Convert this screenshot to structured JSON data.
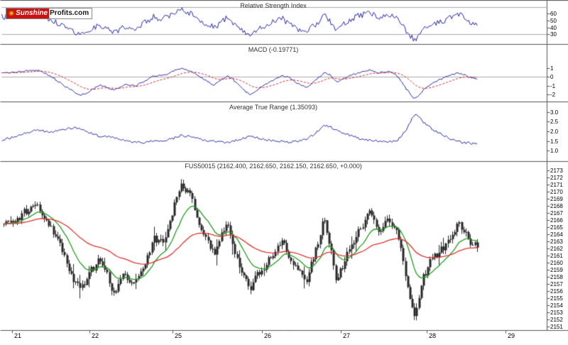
{
  "logo": {
    "part1": "Sunshine",
    "part2": "Profits.com"
  },
  "icons": {
    "sun": "☀"
  },
  "x_axis": {
    "labels": [
      {
        "label": "21",
        "t": 0.019
      },
      {
        "label": "22",
        "t": 0.162
      },
      {
        "label": "25",
        "t": 0.314
      },
      {
        "label": "26",
        "t": 0.478
      },
      {
        "label": "27",
        "t": 0.623
      },
      {
        "label": "28",
        "t": 0.78
      },
      {
        "label": "29",
        "t": 0.925
      }
    ]
  },
  "chart_data": [
    {
      "id": "rsi",
      "type": "line",
      "title": "Relative Strength Index",
      "ylim": [
        18,
        76
      ],
      "y_ticks": [
        60,
        50,
        40,
        30
      ],
      "guides": [
        70,
        30
      ],
      "series": [
        {
          "name": "RSI",
          "color": "#2323aa",
          "style": "solid",
          "noise": 4.5,
          "anchors": [
            [
              0,
              56
            ],
            [
              0.03,
              60
            ],
            [
              0.065,
              64
            ],
            [
              0.09,
              52
            ],
            [
              0.115,
              42
            ],
            [
              0.143,
              30
            ],
            [
              0.162,
              38
            ],
            [
              0.18,
              45
            ],
            [
              0.205,
              33
            ],
            [
              0.225,
              42
            ],
            [
              0.245,
              40
            ],
            [
              0.26,
              47
            ],
            [
              0.279,
              56
            ],
            [
              0.295,
              52
            ],
            [
              0.31,
              60
            ],
            [
              0.329,
              68
            ],
            [
              0.345,
              62
            ],
            [
              0.36,
              54
            ],
            [
              0.375,
              46
            ],
            [
              0.39,
              40
            ],
            [
              0.405,
              50
            ],
            [
              0.413,
              55
            ],
            [
              0.425,
              47
            ],
            [
              0.44,
              36
            ],
            [
              0.455,
              30
            ],
            [
              0.474,
              40
            ],
            [
              0.49,
              47
            ],
            [
              0.513,
              55
            ],
            [
              0.527,
              46
            ],
            [
              0.539,
              40
            ],
            [
              0.558,
              33
            ],
            [
              0.575,
              45
            ],
            [
              0.591,
              58
            ],
            [
              0.603,
              48
            ],
            [
              0.613,
              36
            ],
            [
              0.625,
              44
            ],
            [
              0.64,
              52
            ],
            [
              0.656,
              58
            ],
            [
              0.675,
              62
            ],
            [
              0.69,
              55
            ],
            [
              0.708,
              60
            ],
            [
              0.72,
              56
            ],
            [
              0.727,
              50
            ],
            [
              0.74,
              38
            ],
            [
              0.757,
              22
            ],
            [
              0.767,
              32
            ],
            [
              0.773,
              38
            ],
            [
              0.786,
              44
            ],
            [
              0.8,
              48
            ],
            [
              0.815,
              52
            ],
            [
              0.825,
              56
            ],
            [
              0.836,
              60
            ],
            [
              0.845,
              57
            ],
            [
              0.857,
              50
            ],
            [
              0.87,
              45
            ]
          ]
        }
      ]
    },
    {
      "id": "macd",
      "type": "line",
      "title": "MACD (-0.19771)",
      "value": -0.19771,
      "ylim": [
        -2.64,
        3.36
      ],
      "y_ticks": [
        1,
        0,
        -1,
        -2
      ],
      "guides": [
        0
      ],
      "series": [
        {
          "name": "MACD",
          "color": "#2323aa",
          "style": "solid",
          "noise": 0.1,
          "anchors": [
            [
              0,
              0.4
            ],
            [
              0.03,
              0.6
            ],
            [
              0.065,
              0.8
            ],
            [
              0.09,
              0.1
            ],
            [
              0.115,
              -1.0
            ],
            [
              0.143,
              -2.1
            ],
            [
              0.162,
              -1.6
            ],
            [
              0.18,
              -0.9
            ],
            [
              0.205,
              -1.4
            ],
            [
              0.225,
              -0.9
            ],
            [
              0.245,
              -1.0
            ],
            [
              0.26,
              -0.5
            ],
            [
              0.279,
              0.2
            ],
            [
              0.295,
              0.1
            ],
            [
              0.31,
              0.6
            ],
            [
              0.329,
              1.0
            ],
            [
              0.345,
              0.7
            ],
            [
              0.36,
              0.2
            ],
            [
              0.375,
              -0.4
            ],
            [
              0.39,
              -0.9
            ],
            [
              0.405,
              -0.2
            ],
            [
              0.413,
              0.1
            ],
            [
              0.425,
              -0.3
            ],
            [
              0.44,
              -1.3
            ],
            [
              0.455,
              -2.0
            ],
            [
              0.474,
              -1.2
            ],
            [
              0.49,
              -0.6
            ],
            [
              0.513,
              0.2
            ],
            [
              0.527,
              -0.1
            ],
            [
              0.539,
              -0.6
            ],
            [
              0.558,
              -1.2
            ],
            [
              0.575,
              -0.4
            ],
            [
              0.591,
              0.5
            ],
            [
              0.603,
              0.2
            ],
            [
              0.613,
              -0.6
            ],
            [
              0.625,
              -0.3
            ],
            [
              0.64,
              0.2
            ],
            [
              0.656,
              0.5
            ],
            [
              0.675,
              0.8
            ],
            [
              0.69,
              0.5
            ],
            [
              0.708,
              0.6
            ],
            [
              0.72,
              0.4
            ],
            [
              0.727,
              0.0
            ],
            [
              0.74,
              -1.2
            ],
            [
              0.757,
              -2.45
            ],
            [
              0.767,
              -1.9
            ],
            [
              0.773,
              -1.5
            ],
            [
              0.786,
              -0.9
            ],
            [
              0.8,
              -0.4
            ],
            [
              0.815,
              0.0
            ],
            [
              0.825,
              0.3
            ],
            [
              0.836,
              0.45
            ],
            [
              0.845,
              0.3
            ],
            [
              0.857,
              0.0
            ],
            [
              0.87,
              -0.2
            ]
          ]
        },
        {
          "name": "Signal",
          "color": "#cc2222",
          "style": "dashed",
          "derived": "ema_of_first",
          "alpha": 0.08
        }
      ]
    },
    {
      "id": "atr",
      "type": "line",
      "title": "Average True Range (1.35093)",
      "value": 1.35093,
      "ylim": [
        0.52,
        3.48
      ],
      "y_ticks": [
        "3.0",
        "2.5",
        "2.0",
        "1.5",
        "1.0"
      ],
      "guides": [],
      "series": [
        {
          "name": "ATR",
          "color": "#2323aa",
          "style": "solid",
          "noise": 0.06,
          "anchors": [
            [
              0,
              1.55
            ],
            [
              0.03,
              1.8
            ],
            [
              0.065,
              2.1
            ],
            [
              0.09,
              1.95
            ],
            [
              0.115,
              2.15
            ],
            [
              0.143,
              2.2
            ],
            [
              0.162,
              1.95
            ],
            [
              0.18,
              1.75
            ],
            [
              0.205,
              1.7
            ],
            [
              0.225,
              1.55
            ],
            [
              0.245,
              1.45
            ],
            [
              0.26,
              1.4
            ],
            [
              0.279,
              1.55
            ],
            [
              0.295,
              1.5
            ],
            [
              0.31,
              1.6
            ],
            [
              0.329,
              1.8
            ],
            [
              0.345,
              1.75
            ],
            [
              0.36,
              1.65
            ],
            [
              0.375,
              1.55
            ],
            [
              0.39,
              1.5
            ],
            [
              0.405,
              1.45
            ],
            [
              0.425,
              1.5
            ],
            [
              0.44,
              1.65
            ],
            [
              0.455,
              1.75
            ],
            [
              0.474,
              1.65
            ],
            [
              0.49,
              1.55
            ],
            [
              0.513,
              1.5
            ],
            [
              0.527,
              1.45
            ],
            [
              0.539,
              1.5
            ],
            [
              0.558,
              1.6
            ],
            [
              0.575,
              1.9
            ],
            [
              0.591,
              2.35
            ],
            [
              0.603,
              2.25
            ],
            [
              0.613,
              2.1
            ],
            [
              0.625,
              1.95
            ],
            [
              0.64,
              1.8
            ],
            [
              0.656,
              1.65
            ],
            [
              0.675,
              1.55
            ],
            [
              0.69,
              1.5
            ],
            [
              0.708,
              1.45
            ],
            [
              0.72,
              1.5
            ],
            [
              0.727,
              1.6
            ],
            [
              0.74,
              2.0
            ],
            [
              0.757,
              2.9
            ],
            [
              0.767,
              2.75
            ],
            [
              0.773,
              2.5
            ],
            [
              0.786,
              2.2
            ],
            [
              0.8,
              1.95
            ],
            [
              0.815,
              1.75
            ],
            [
              0.825,
              1.6
            ],
            [
              0.836,
              1.5
            ],
            [
              0.845,
              1.45
            ],
            [
              0.857,
              1.4
            ],
            [
              0.87,
              1.35
            ]
          ]
        }
      ]
    },
    {
      "id": "price",
      "type": "candlestick",
      "title": "FUS50015 (2162.400, 2162.650, 2162.150, 2162.650, +0.000)",
      "symbol": "FUS50015",
      "ohlc": {
        "open": "2162.400",
        "high": "2162.650",
        "low": "2162.150",
        "close": "2162.650",
        "change": "+0.000"
      },
      "ylim": [
        2150.7,
        2174.1
      ],
      "y_ticks": [
        2173,
        2172,
        2171,
        2170,
        2169,
        2168,
        2167,
        2166,
        2165,
        2164,
        2163,
        2162,
        2161,
        2160,
        2159,
        2158,
        2157,
        2156,
        2155,
        2154,
        2153,
        2152,
        2151
      ],
      "guides": [],
      "bar_color": "#262626",
      "num_bars": 212,
      "close_noise": 1.3,
      "wick_noise": 0.6,
      "overlays": [
        {
          "name": "fast-ma",
          "color": "#1f9d1f",
          "period": 14
        },
        {
          "name": "slow-ma",
          "color": "#e03030",
          "period": 50
        }
      ],
      "close_anchors": [
        [
          0.006,
          2165.5
        ],
        [
          0.03,
          2166.5
        ],
        [
          0.065,
          2167.6
        ],
        [
          0.09,
          2164.5
        ],
        [
          0.115,
          2160.5
        ],
        [
          0.143,
          2156.3
        ],
        [
          0.162,
          2158.2
        ],
        [
          0.18,
          2160.3
        ],
        [
          0.195,
          2157.5
        ],
        [
          0.205,
          2155.9
        ],
        [
          0.225,
          2158.0
        ],
        [
          0.245,
          2157.5
        ],
        [
          0.26,
          2159.5
        ],
        [
          0.279,
          2163.3
        ],
        [
          0.295,
          2162.4
        ],
        [
          0.31,
          2166.5
        ],
        [
          0.329,
          2171.8
        ],
        [
          0.345,
          2169.5
        ],
        [
          0.36,
          2166.0
        ],
        [
          0.375,
          2163.0
        ],
        [
          0.39,
          2161.3
        ],
        [
          0.405,
          2164.5
        ],
        [
          0.413,
          2165.8
        ],
        [
          0.425,
          2163.0
        ],
        [
          0.44,
          2158.5
        ],
        [
          0.455,
          2156.2
        ],
        [
          0.474,
          2158.6
        ],
        [
          0.49,
          2161.0
        ],
        [
          0.513,
          2163.6
        ],
        [
          0.527,
          2161.0
        ],
        [
          0.539,
          2159.0
        ],
        [
          0.558,
          2157.0
        ],
        [
          0.575,
          2161.5
        ],
        [
          0.591,
          2166.3
        ],
        [
          0.603,
          2162.5
        ],
        [
          0.613,
          2157.6
        ],
        [
          0.625,
          2159.5
        ],
        [
          0.64,
          2162.5
        ],
        [
          0.656,
          2165.0
        ],
        [
          0.675,
          2166.8
        ],
        [
          0.69,
          2164.8
        ],
        [
          0.708,
          2166.2
        ],
        [
          0.72,
          2165.5
        ],
        [
          0.727,
          2163.5
        ],
        [
          0.74,
          2158.5
        ],
        [
          0.757,
          2151.8
        ],
        [
          0.767,
          2155.5
        ],
        [
          0.773,
          2157.8
        ],
        [
          0.786,
          2159.8
        ],
        [
          0.8,
          2161.0
        ],
        [
          0.815,
          2162.3
        ],
        [
          0.825,
          2163.8
        ],
        [
          0.836,
          2165.2
        ],
        [
          0.845,
          2164.7
        ],
        [
          0.857,
          2163.4
        ],
        [
          0.87,
          2162.7
        ]
      ]
    }
  ]
}
